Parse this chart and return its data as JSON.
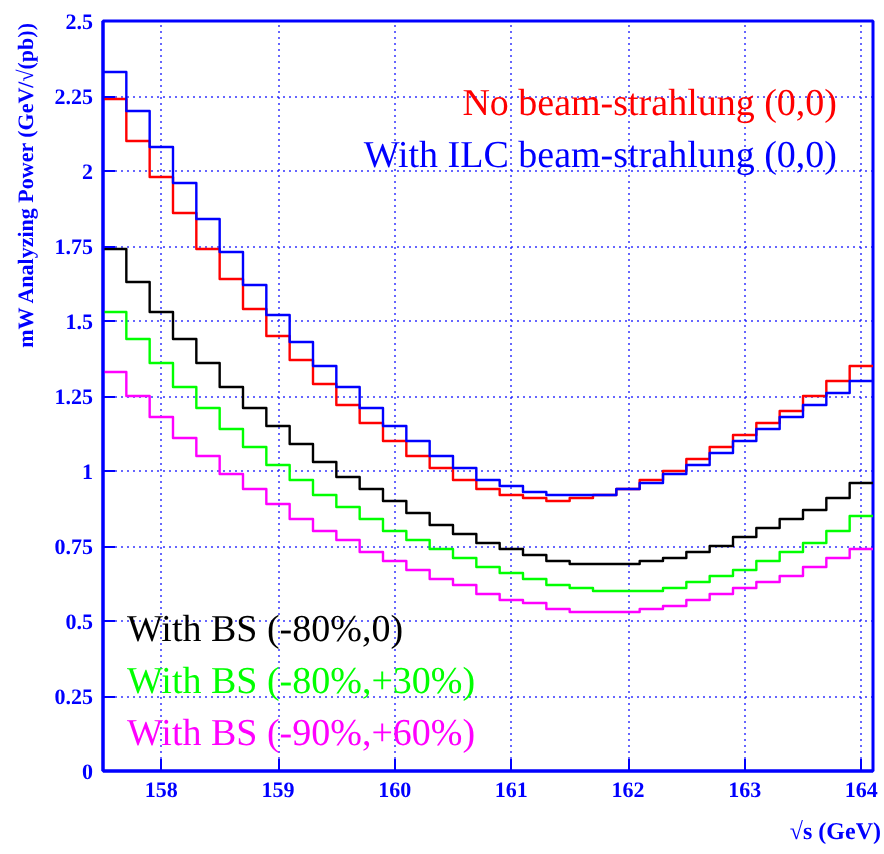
{
  "chart_data": {
    "type": "histogram",
    "xlabel": "√s (GeV)",
    "ylabel": "mW Analyzing Power (GeV/√(pb))",
    "bins": [
      157.5,
      157.7,
      157.9,
      158.1,
      158.3,
      158.5,
      158.7,
      158.9,
      159.1,
      159.3,
      159.5,
      159.7,
      159.9,
      160.1,
      160.3,
      160.5,
      160.7,
      160.9,
      161.1,
      161.3,
      161.5,
      161.7,
      161.9,
      162.1,
      162.3,
      162.5,
      162.7,
      162.9,
      163.1,
      163.3,
      163.5,
      163.7,
      163.9,
      164.1
    ],
    "series": [
      {
        "name": "No beam-strahlung (0,0)",
        "color": "#ff0000",
        "values": [
          2.24,
          2.1,
          1.98,
          1.86,
          1.74,
          1.64,
          1.54,
          1.45,
          1.37,
          1.29,
          1.22,
          1.16,
          1.1,
          1.05,
          1.01,
          0.97,
          0.94,
          0.92,
          0.91,
          0.9,
          0.91,
          0.92,
          0.94,
          0.97,
          1.0,
          1.04,
          1.08,
          1.12,
          1.16,
          1.2,
          1.25,
          1.3,
          1.35
        ]
      },
      {
        "name": "With ILC beam-strahlung (0,0)",
        "color": "#0000ff",
        "values": [
          2.33,
          2.2,
          2.08,
          1.96,
          1.84,
          1.73,
          1.62,
          1.52,
          1.43,
          1.35,
          1.28,
          1.21,
          1.15,
          1.1,
          1.05,
          1.01,
          0.97,
          0.95,
          0.93,
          0.92,
          0.92,
          0.92,
          0.94,
          0.96,
          0.99,
          1.02,
          1.06,
          1.1,
          1.14,
          1.18,
          1.22,
          1.26,
          1.3
        ]
      },
      {
        "name": "With BS (-80%,0)",
        "color": "#000000",
        "values": [
          1.74,
          1.63,
          1.53,
          1.44,
          1.36,
          1.28,
          1.21,
          1.15,
          1.09,
          1.03,
          0.98,
          0.94,
          0.9,
          0.86,
          0.82,
          0.79,
          0.76,
          0.74,
          0.72,
          0.7,
          0.69,
          0.69,
          0.69,
          0.7,
          0.71,
          0.73,
          0.75,
          0.78,
          0.81,
          0.84,
          0.87,
          0.91,
          0.96
        ]
      },
      {
        "name": "With BS (-80%,+30%)",
        "color": "#00ff00",
        "values": [
          1.53,
          1.44,
          1.36,
          1.28,
          1.21,
          1.14,
          1.08,
          1.02,
          0.97,
          0.92,
          0.88,
          0.84,
          0.8,
          0.77,
          0.74,
          0.71,
          0.68,
          0.66,
          0.64,
          0.62,
          0.61,
          0.6,
          0.6,
          0.6,
          0.61,
          0.63,
          0.65,
          0.67,
          0.7,
          0.73,
          0.76,
          0.8,
          0.85
        ]
      },
      {
        "name": "With BS (-90%,+60%)",
        "color": "#ff00ff",
        "values": [
          1.33,
          1.25,
          1.18,
          1.11,
          1.05,
          0.99,
          0.94,
          0.89,
          0.84,
          0.8,
          0.77,
          0.73,
          0.7,
          0.67,
          0.64,
          0.62,
          0.59,
          0.57,
          0.56,
          0.54,
          0.53,
          0.53,
          0.53,
          0.54,
          0.55,
          0.57,
          0.59,
          0.61,
          0.63,
          0.65,
          0.68,
          0.71,
          0.74
        ]
      }
    ],
    "xlim": [
      157.5,
      164.1
    ],
    "ylim": [
      0,
      2.5
    ],
    "xticks": [
      158,
      159,
      160,
      161,
      162,
      163,
      164
    ],
    "yticks": [
      0,
      0.25,
      0.5,
      0.75,
      1,
      1.25,
      1.5,
      1.75,
      2,
      2.25,
      2.5
    ],
    "grid": true
  }
}
